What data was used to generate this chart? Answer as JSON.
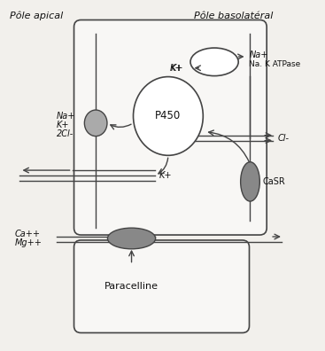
{
  "bg_color": "#f2f0ec",
  "title_apical": "Pôle apical",
  "title_basolateral": "Pôle basolatéral",
  "label_NaK2Cl": "Na+\nK+\n2Cl-",
  "label_K_channel": "K+",
  "label_CaMg": "Ca++\nMg++",
  "label_Cl": "Cl-",
  "label_Na": "Na+",
  "label_NaKATPase": "Na. K ATPase",
  "label_CaSR": "CaSR",
  "label_P450": "P450",
  "label_Paracelline": "Paracelline",
  "gray_light": "#aaaaaa",
  "gray_dark": "#888888",
  "line_color": "#444444",
  "text_color": "#111111",
  "white": "#ffffff",
  "cell_bg": "#f8f7f5"
}
